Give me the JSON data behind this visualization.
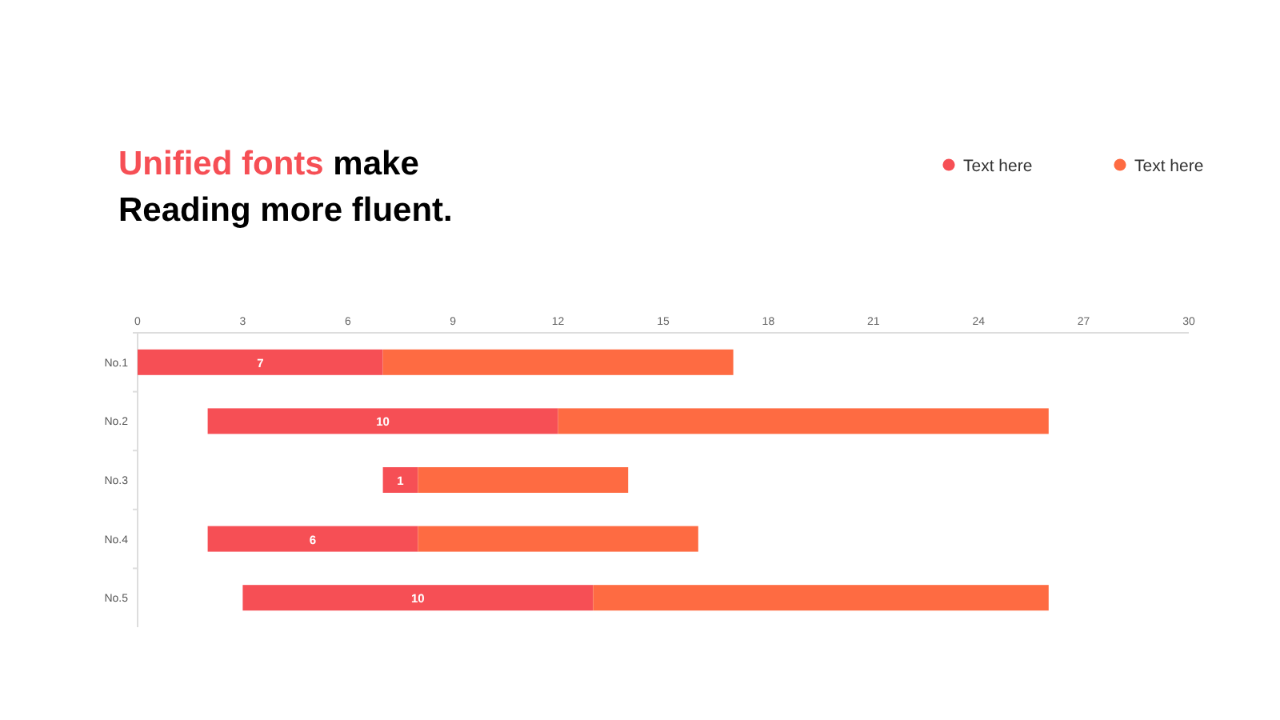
{
  "chart_data": {
    "type": "bar",
    "orientation": "horizontal",
    "title": "Unified fonts make Reading more fluent.",
    "categories": [
      "No.1",
      "No.2",
      "No.3",
      "No.4",
      "No.5"
    ],
    "series": [
      {
        "name": "Text here",
        "color": "#f64f55",
        "base": [
          0,
          2,
          7,
          2,
          3
        ],
        "values": [
          7,
          10,
          1,
          6,
          10
        ],
        "value_labels": [
          "7",
          "10",
          "1",
          "6",
          "10"
        ]
      },
      {
        "name": "Text here",
        "color": "#fe6b42",
        "base": [
          7,
          12,
          8,
          8,
          13
        ],
        "values": [
          10,
          14,
          6,
          8,
          13
        ]
      }
    ],
    "xlim": [
      0,
      30
    ],
    "xticks": [
      0,
      3,
      6,
      9,
      12,
      15,
      18,
      21,
      24,
      27,
      30
    ],
    "legend": "top right",
    "grid": false
  }
}
